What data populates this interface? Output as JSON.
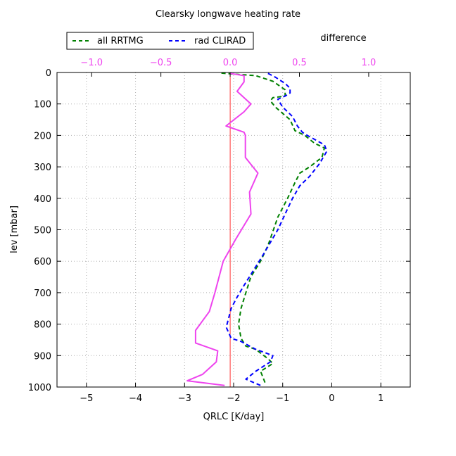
{
  "chart_data": {
    "type": "line",
    "title": "Clearsky longwave heating rate",
    "xlabel": "QRLC [K/day]",
    "ylabel": "lev [mbar]",
    "secondary_label": "difference",
    "xlim": [
      -5.6,
      1.6
    ],
    "ylim": [
      1000,
      0
    ],
    "xticks": [
      -5,
      -4,
      -3,
      -2,
      -1,
      0,
      1
    ],
    "yticks": [
      0,
      100,
      200,
      300,
      400,
      500,
      600,
      700,
      800,
      900,
      1000
    ],
    "top_xlim": [
      -1.25,
      1.3
    ],
    "top_xticks": [
      -1.0,
      -0.5,
      0.0,
      0.5,
      1.0
    ],
    "grid": true,
    "legend_position": "top-left",
    "series": [
      {
        "name": "all RRTMG",
        "axis": "bottom",
        "color": "#008000",
        "dash": "dashed",
        "points": [
          [
            -2.25,
            2
          ],
          [
            -1.55,
            10
          ],
          [
            -1.2,
            28
          ],
          [
            -0.95,
            55
          ],
          [
            -0.95,
            75
          ],
          [
            -1.2,
            80
          ],
          [
            -1.25,
            90
          ],
          [
            -1.15,
            110
          ],
          [
            -0.85,
            150
          ],
          [
            -0.75,
            185
          ],
          [
            -0.55,
            200
          ],
          [
            -0.35,
            225
          ],
          [
            -0.15,
            240
          ],
          [
            -0.2,
            270
          ],
          [
            -0.45,
            300
          ],
          [
            -0.65,
            320
          ],
          [
            -0.75,
            350
          ],
          [
            -0.9,
            400
          ],
          [
            -1.1,
            460
          ],
          [
            -1.3,
            550
          ],
          [
            -1.45,
            600
          ],
          [
            -1.65,
            650
          ],
          [
            -1.75,
            700
          ],
          [
            -1.85,
            750
          ],
          [
            -1.9,
            800
          ],
          [
            -1.85,
            845
          ],
          [
            -1.75,
            870
          ],
          [
            -1.55,
            880
          ],
          [
            -1.3,
            910
          ],
          [
            -1.2,
            925
          ],
          [
            -1.45,
            950
          ],
          [
            -1.35,
            990
          ]
        ]
      },
      {
        "name": "rad CLIRAD",
        "axis": "bottom",
        "color": "#0000ff",
        "dash": "dashed",
        "points": [
          [
            -1.3,
            3
          ],
          [
            -1.15,
            15
          ],
          [
            -0.95,
            35
          ],
          [
            -0.85,
            50
          ],
          [
            -0.85,
            65
          ],
          [
            -0.95,
            75
          ],
          [
            -1.1,
            85
          ],
          [
            -1.0,
            110
          ],
          [
            -0.8,
            140
          ],
          [
            -0.7,
            170
          ],
          [
            -0.6,
            190
          ],
          [
            -0.5,
            200
          ],
          [
            -0.15,
            230
          ],
          [
            -0.1,
            250
          ],
          [
            -0.25,
            290
          ],
          [
            -0.45,
            330
          ],
          [
            -0.65,
            360
          ],
          [
            -0.8,
            400
          ],
          [
            -0.95,
            450
          ],
          [
            -1.1,
            500
          ],
          [
            -1.4,
            580
          ],
          [
            -1.6,
            630
          ],
          [
            -1.8,
            680
          ],
          [
            -1.95,
            720
          ],
          [
            -2.05,
            750
          ],
          [
            -2.15,
            810
          ],
          [
            -2.05,
            845
          ],
          [
            -1.85,
            855
          ],
          [
            -1.55,
            880
          ],
          [
            -1.2,
            900
          ],
          [
            -1.25,
            920
          ],
          [
            -1.4,
            935
          ],
          [
            -1.55,
            950
          ],
          [
            -1.75,
            975
          ],
          [
            -1.45,
            995
          ]
        ]
      },
      {
        "name": "difference",
        "axis": "top",
        "color": "#ee44ee",
        "dash": "solid",
        "points": [
          [
            0.0,
            3
          ],
          [
            0.1,
            10
          ],
          [
            0.1,
            30
          ],
          [
            0.05,
            60
          ],
          [
            0.15,
            100
          ],
          [
            0.1,
            125
          ],
          [
            -0.03,
            170
          ],
          [
            0.1,
            190
          ],
          [
            0.11,
            200
          ],
          [
            0.11,
            270
          ],
          [
            0.2,
            320
          ],
          [
            0.14,
            380
          ],
          [
            0.15,
            450
          ],
          [
            0.04,
            530
          ],
          [
            -0.05,
            600
          ],
          [
            -0.11,
            700
          ],
          [
            -0.15,
            760
          ],
          [
            -0.25,
            820
          ],
          [
            -0.25,
            860
          ],
          [
            -0.09,
            885
          ],
          [
            -0.1,
            920
          ],
          [
            -0.2,
            960
          ],
          [
            -0.31,
            980
          ],
          [
            -0.04,
            995
          ]
        ]
      }
    ],
    "reference_line": {
      "axis": "top",
      "x": 0.0,
      "color": "#ff0000"
    }
  }
}
